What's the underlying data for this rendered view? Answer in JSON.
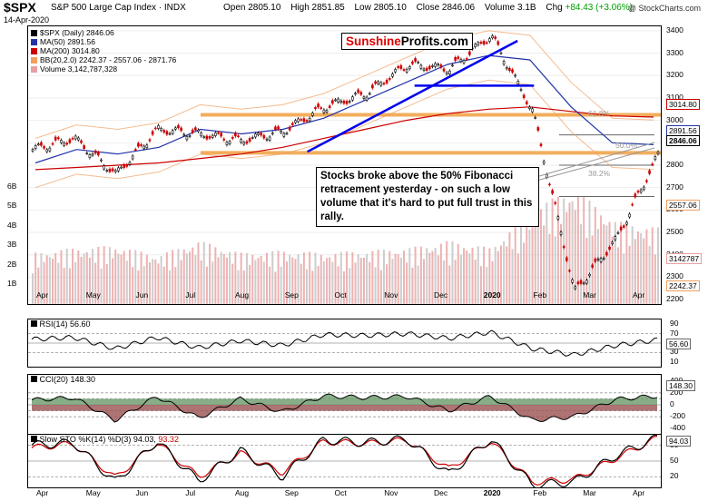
{
  "header": {
    "symbol": "$SPX",
    "name": "S&P 500 Large Cap Index",
    "exchange": "INDX",
    "date": "14-Apr-2020",
    "open_label": "Open",
    "open": "2805.10",
    "high_label": "High",
    "high": "2851.85",
    "low_label": "Low",
    "low": "2805.10",
    "close_label": "Close",
    "close": "2846.06",
    "volume_label": "Volume",
    "volume": "3.1B",
    "chg_label": "Chg",
    "chg": "+84.43 (+3.06%)",
    "credit": "@ StockCharts.com"
  },
  "main_legend": {
    "price": "$SPX (Daily) 2846.06",
    "ma50": "MA(50) 2891.56",
    "ma200": "MA(200) 3014.80",
    "bb": "BB(20,2.0) 2242.37 - 2557.06 - 2871.76",
    "volume": "Volume 3,142,787,328"
  },
  "logo": {
    "part1": "Sunshine",
    "part2": "Profits.com"
  },
  "annotation": "Stocks broke above the 50% Fibonacci retracement yesterday - on such a low volume that it's hard to put full trust in this rally.",
  "fib_labels": [
    "61.8%",
    "50.0%",
    "38.2%"
  ],
  "price_axis": [
    "3400",
    "3300",
    "3200",
    "3100",
    "3000",
    "2900",
    "2800",
    "2700",
    "2600",
    "2500",
    "2400",
    "2300",
    "2200"
  ],
  "price_tags": {
    "ma200": "3014.80",
    "ma50": "2891.56",
    "close": "2846.06",
    "bbmid": "2557.06",
    "volume": "3142787",
    "bblow": "2242.37"
  },
  "volume_axis": [
    "6B",
    "5B",
    "4B",
    "3B",
    "2B",
    "1B"
  ],
  "month_labels": [
    "Apr",
    "May",
    "Jun",
    "Jul",
    "Aug",
    "Sep",
    "Oct",
    "Nov",
    "Dec",
    "2020",
    "Feb",
    "Mar",
    "Apr"
  ],
  "rsi": {
    "title": "RSI(14) 56.60",
    "axis": [
      "90",
      "70",
      "50",
      "30",
      "10"
    ],
    "tag": "56.60"
  },
  "cci": {
    "title": "CCI(20) 148.30",
    "axis": [
      "400",
      "200",
      "0",
      "-200",
      "-400"
    ],
    "tag": "148.30"
  },
  "sto": {
    "title_a": "Slow STO %K(14) %D(3) 94.03,",
    "title_b": "93.32",
    "axis": [
      "80",
      "50",
      "20"
    ],
    "tag": "94.03"
  },
  "colors": {
    "price_up": "#000000",
    "price_down": "#cc0000",
    "ma50": "#2233aa",
    "ma200": "#cc0000",
    "bb": "#f0a060",
    "trendline": "#0000ee",
    "support": "#f0a040",
    "volume": "#e8a0a0"
  },
  "chart_data": {
    "type": "line",
    "series": [
      {
        "name": "$SPX (Daily)",
        "x": [
          "2019-04-01",
          "2019-05-01",
          "2019-06-03",
          "2019-07-01",
          "2019-08-01",
          "2019-09-03",
          "2019-10-01",
          "2019-11-01",
          "2019-12-02",
          "2020-01-02",
          "2020-02-03",
          "2020-02-19",
          "2020-03-02",
          "2020-03-23",
          "2020-04-01",
          "2020-04-14"
        ],
        "values": [
          2870,
          2920,
          2760,
          2960,
          2940,
          2910,
          2950,
          3060,
          3120,
          3250,
          3230,
          3380,
          3040,
          2237,
          2470,
          2846
        ]
      },
      {
        "name": "MA(50)",
        "values": [
          2810,
          2870,
          2850,
          2880,
          2960,
          2940,
          2960,
          3010,
          3090,
          3170,
          3250,
          3290,
          3270,
          3060,
          2900,
          2891.56
        ]
      },
      {
        "name": "MA(200)",
        "values": [
          2780,
          2790,
          2800,
          2810,
          2830,
          2850,
          2880,
          2920,
          2960,
          3000,
          3030,
          3050,
          3060,
          3040,
          3020,
          3014.8
        ]
      }
    ],
    "ylim": [
      2180,
      3420
    ],
    "volume": [
      2.1,
      2.3,
      2.4,
      2.0,
      2.6,
      2.1,
      2.2,
      2.1,
      2.2,
      2.3,
      2.6,
      2.3,
      4.0,
      4.7,
      3.4,
      3.14
    ],
    "rsi": {
      "ylim": [
        0,
        100
      ],
      "values": [
        58,
        62,
        38,
        62,
        40,
        55,
        45,
        68,
        66,
        70,
        60,
        73,
        38,
        25,
        45,
        56.6
      ]
    },
    "cci": {
      "ylim": [
        -500,
        500
      ],
      "values": [
        80,
        120,
        -260,
        140,
        -220,
        100,
        -120,
        150,
        120,
        140,
        -100,
        140,
        -260,
        -200,
        90,
        148.3
      ]
    },
    "sto": {
      "ylim": [
        0,
        100
      ],
      "k": [
        80,
        85,
        10,
        88,
        12,
        70,
        20,
        90,
        85,
        92,
        25,
        92,
        5,
        10,
        60,
        94.03
      ],
      "d": [
        75,
        83,
        18,
        85,
        20,
        65,
        28,
        87,
        83,
        90,
        35,
        88,
        10,
        15,
        55,
        93.32
      ]
    },
    "fib_levels": [
      2935,
      2800,
      2660
    ],
    "support_levels": [
      3025,
      2855
    ],
    "bb_last": {
      "upper": 2871.76,
      "mid": 2557.06,
      "lower": 2242.37
    }
  }
}
